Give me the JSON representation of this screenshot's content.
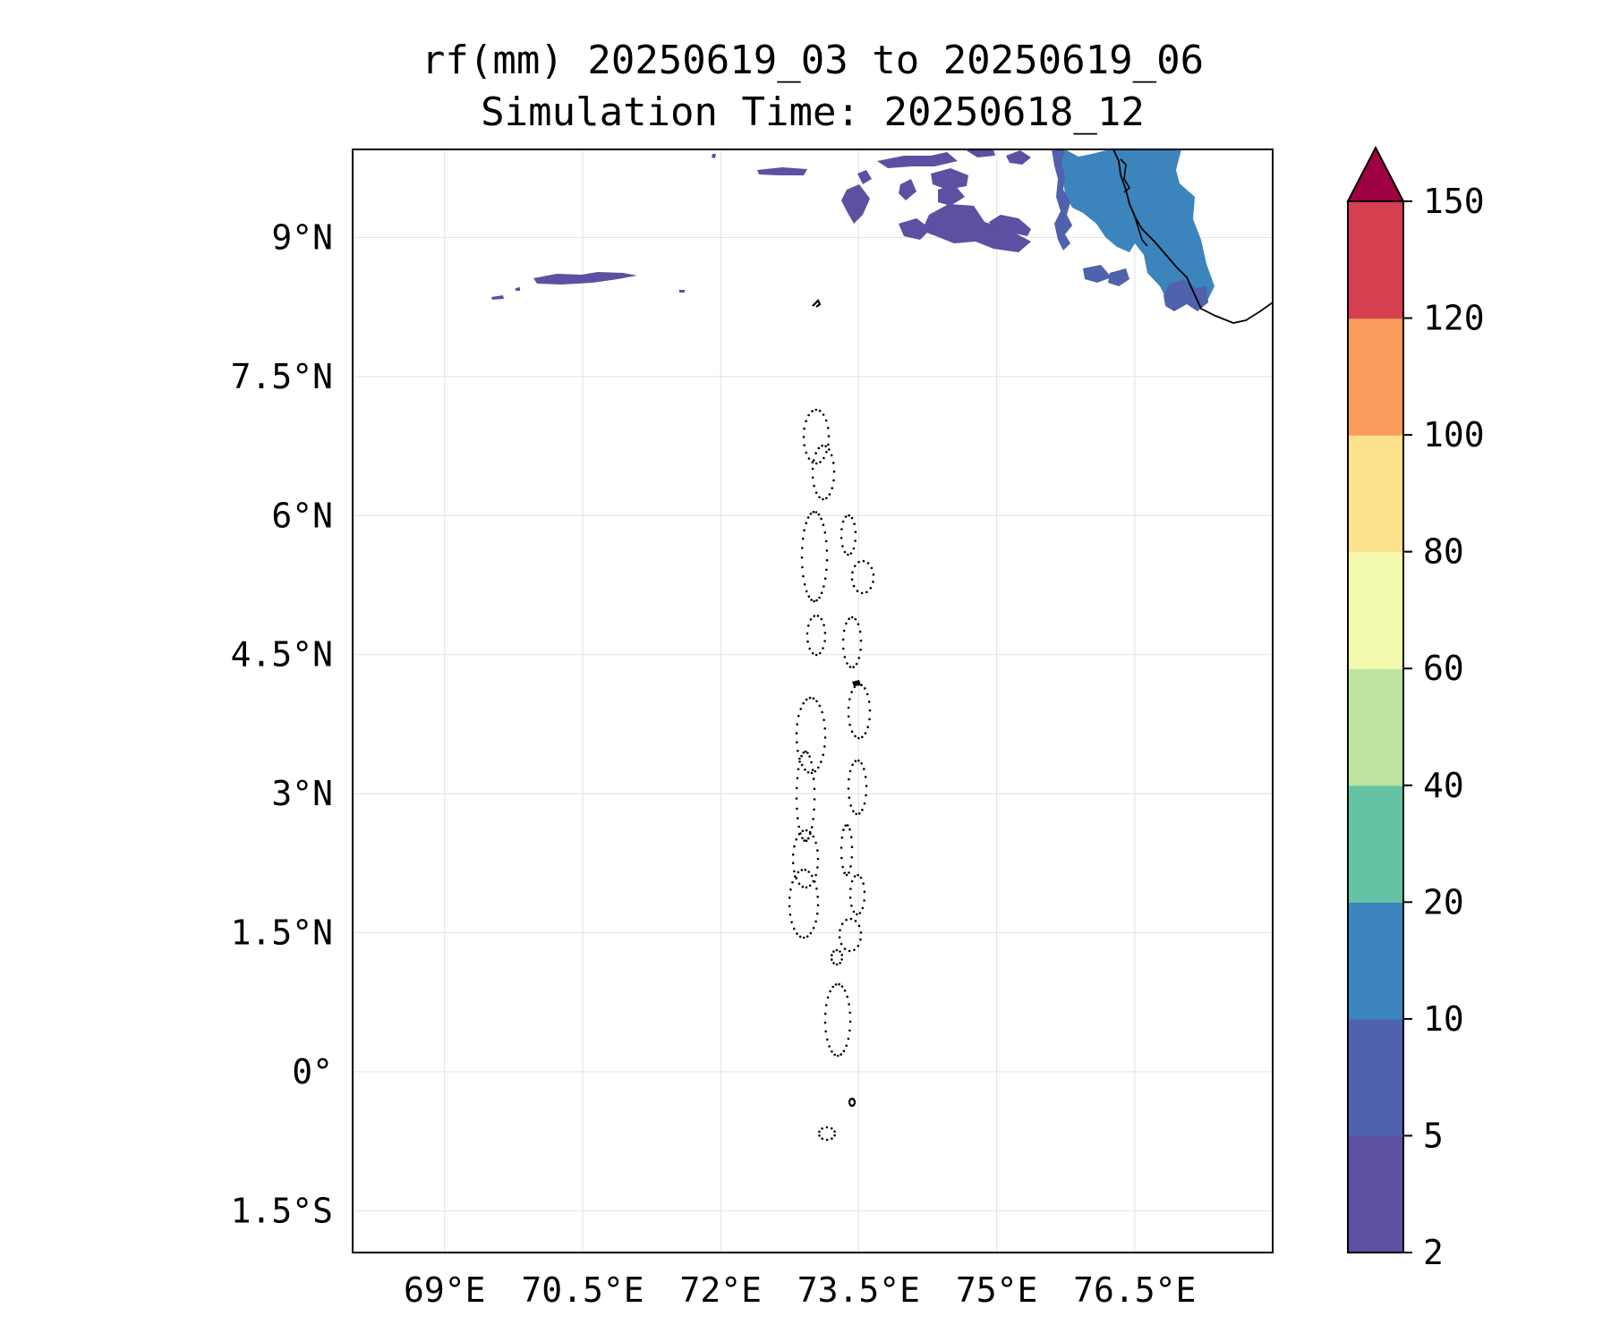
{
  "title": "rf(mm) 20250619_03 to 20250619_06",
  "subtitle": "Simulation Time: 20250618_12",
  "map": {
    "extent": {
      "lon": [
        68.0,
        78.0
      ],
      "lat": [
        -1.95,
        9.95
      ]
    },
    "lon_ticks": [
      {
        "value": 69.0,
        "label": "69°E"
      },
      {
        "value": 70.5,
        "label": "70.5°E"
      },
      {
        "value": 72.0,
        "label": "72°E"
      },
      {
        "value": 73.5,
        "label": "73.5°E"
      },
      {
        "value": 75.0,
        "label": "75°E"
      },
      {
        "value": 76.5,
        "label": "76.5°E"
      }
    ],
    "lat_ticks": [
      {
        "value": 9.0,
        "label": "9°N"
      },
      {
        "value": 7.5,
        "label": "7.5°N"
      },
      {
        "value": 6.0,
        "label": "6°N"
      },
      {
        "value": 4.5,
        "label": "4.5°N"
      },
      {
        "value": 3.0,
        "label": "3°N"
      },
      {
        "value": 1.5,
        "label": "1.5°N"
      },
      {
        "value": 0.0,
        "label": "0°"
      },
      {
        "value": -1.5,
        "label": "1.5°S"
      }
    ],
    "gridlines": true
  },
  "colorbar": {
    "levels": [
      2,
      5,
      10,
      20,
      40,
      60,
      80,
      100,
      120,
      150
    ],
    "colors": [
      "#5e4fa2",
      "#4f62ab",
      "#3b85bc",
      "#66c2a5",
      "#bde4a0",
      "#f4faad",
      "#fce08a",
      "#f99c5b",
      "#d63f4f"
    ],
    "extend_color": "#9e0142",
    "extend": "max"
  }
}
